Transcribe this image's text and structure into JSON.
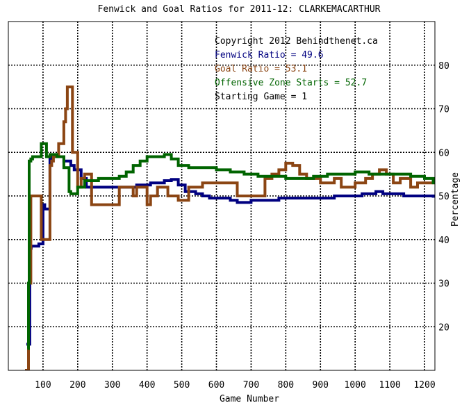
{
  "chart_data": {
    "type": "line",
    "title": "Fenwick and Goal Ratios for 2011-12: CLARKEMACARTHUR",
    "xlabel": "Game Number",
    "ylabel": "Percentage",
    "xlim": [
      0,
      1230
    ],
    "ylim": [
      10,
      90
    ],
    "x_ticks": [
      100,
      200,
      300,
      400,
      500,
      600,
      700,
      800,
      900,
      1000,
      1100,
      1200
    ],
    "y_ticks": [
      20,
      30,
      40,
      50,
      60,
      70,
      80
    ],
    "grid": true,
    "annotations": [
      {
        "text": "Copyright 2012 Behindthenet.ca",
        "color": "#000000"
      },
      {
        "text": "Fenwick Ratio = 49.6",
        "color": "#000080"
      },
      {
        "text": "Goal Ratio = 53.1",
        "color": "#8B4513"
      },
      {
        "text": "Offensive Zone Starts = 52.7",
        "color": "#006400"
      },
      {
        "text": "Starting Game = 1",
        "color": "#000000"
      }
    ],
    "series": [
      {
        "name": "Fenwick Ratio",
        "color": "#000080",
        "x": [
          52,
          60,
          62,
          64,
          66,
          85,
          88,
          95,
          100,
          105,
          120,
          125,
          140,
          160,
          180,
          190,
          210,
          225,
          250,
          300,
          350,
          370,
          390,
          410,
          430,
          450,
          470,
          490,
          510,
          540,
          560,
          580,
          600,
          640,
          660,
          700,
          740,
          780,
          820,
          860,
          900,
          940,
          980,
          1020,
          1060,
          1080,
          1100,
          1140,
          1180,
          1210,
          1225
        ],
        "y": [
          16,
          16,
          38,
          38,
          38.5,
          38.5,
          39,
          39,
          48,
          47,
          58.5,
          59,
          59,
          58,
          57,
          56,
          54,
          52,
          52,
          52,
          52,
          52.5,
          52.5,
          53,
          53,
          53.5,
          53.8,
          52.5,
          51,
          50.5,
          50,
          49.5,
          49.5,
          49,
          48.5,
          49,
          49,
          49.5,
          49.5,
          49.5,
          49.5,
          50,
          50,
          50.5,
          51,
          50.5,
          50.5,
          50,
          50,
          50,
          49.6
        ]
      },
      {
        "name": "Goal Ratio",
        "color": "#8B4513",
        "x": [
          48,
          55,
          58,
          62,
          65,
          70,
          95,
          100,
          120,
          125,
          130,
          145,
          160,
          165,
          170,
          175,
          185,
          195,
          200,
          210,
          220,
          240,
          300,
          320,
          360,
          370,
          380,
          400,
          410,
          430,
          440,
          460,
          480,
          490,
          510,
          520,
          540,
          560,
          600,
          620,
          660,
          680,
          700,
          720,
          740,
          760,
          780,
          800,
          820,
          840,
          860,
          880,
          900,
          920,
          940,
          960,
          980,
          1000,
          1030,
          1050,
          1070,
          1090,
          1110,
          1130,
          1160,
          1180,
          1200,
          1225
        ],
        "y": [
          10,
          10,
          30,
          30,
          50,
          50,
          40,
          40,
          57,
          58,
          59,
          62,
          67,
          70,
          75,
          75,
          60,
          60,
          52,
          54,
          55,
          48,
          48,
          52,
          50,
          52,
          52,
          48,
          50,
          52,
          52,
          50,
          50,
          49,
          49,
          52,
          52,
          53,
          53,
          53,
          50,
          50,
          50,
          50,
          54,
          55,
          56,
          57.5,
          57,
          55,
          54,
          54,
          53,
          53,
          54,
          52,
          52,
          53,
          54,
          55,
          56,
          55,
          53,
          54,
          52,
          53,
          53,
          53.1
        ]
      },
      {
        "name": "Offensive Zone Starts",
        "color": "#006400",
        "x": [
          55,
          58,
          60,
          65,
          70,
          90,
          95,
          100,
          110,
          120,
          140,
          150,
          160,
          175,
          180,
          200,
          220,
          260,
          320,
          340,
          360,
          380,
          400,
          420,
          450,
          470,
          490,
          520,
          560,
          600,
          640,
          680,
          720,
          760,
          800,
          840,
          880,
          920,
          960,
          1000,
          1040,
          1080,
          1120,
          1160,
          1200,
          1225
        ],
        "y": [
          15,
          30,
          58,
          58.5,
          59,
          59,
          62,
          62,
          59,
          59.5,
          59,
          59,
          56.5,
          51,
          50.5,
          52,
          53.5,
          54,
          54.5,
          55.5,
          57,
          58,
          59,
          59,
          59.5,
          58.5,
          57,
          56.5,
          56.5,
          56,
          55.5,
          55,
          54.5,
          54.5,
          54,
          54,
          54.5,
          55,
          55,
          55.5,
          55,
          55,
          55,
          54.5,
          54,
          52.7
        ]
      }
    ]
  }
}
